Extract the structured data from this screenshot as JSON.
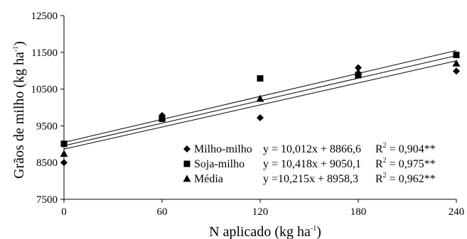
{
  "chart_data": {
    "type": "scatter",
    "title": "",
    "xlabel": "N aplicado (kg ha",
    "xlabel_sup": "-1",
    "xlabel_close": ")",
    "ylabel": "Grãos de milho (kg ha",
    "ylabel_sup": "-1",
    "ylabel_close": ")",
    "xlim": [
      0,
      240
    ],
    "ylim": [
      7500,
      12500
    ],
    "x_ticks": [
      0,
      60,
      120,
      180,
      240
    ],
    "y_ticks": [
      7500,
      8500,
      9500,
      10500,
      11500,
      12500
    ],
    "grid": false,
    "legend_position": "bottom-right",
    "series": [
      {
        "name": "Milho-milho",
        "marker": "diamond",
        "x": [
          0,
          60,
          120,
          180,
          240
        ],
        "y": [
          8500,
          9780,
          9720,
          11080,
          10990
        ],
        "equation": "y = 10,012x + 8866,6",
        "r2_prefix": "R",
        "r2_sup": "2",
        "r2_value": " = 0,904**",
        "slope": 10.012,
        "intercept": 8866.6
      },
      {
        "name": "Soja-milho",
        "marker": "square",
        "x": [
          0,
          60,
          120,
          180,
          240
        ],
        "y": [
          9010,
          9690,
          10790,
          10880,
          11430
        ],
        "equation": "y = 10,418x + 9050,1",
        "r2_prefix": "R",
        "r2_sup": "2",
        "r2_value": " = 0,975**",
        "slope": 10.418,
        "intercept": 9050.1
      },
      {
        "name": "Média",
        "marker": "triangle",
        "x": [
          0,
          60,
          120,
          180,
          240
        ],
        "y": [
          8740,
          9730,
          10240,
          10960,
          11200
        ],
        "equation": "y =10,215x  + 8958,3",
        "r2_prefix": "R",
        "r2_sup": "2",
        "r2_value": " = 0,962**",
        "slope": 10.215,
        "intercept": 8958.3
      }
    ]
  }
}
